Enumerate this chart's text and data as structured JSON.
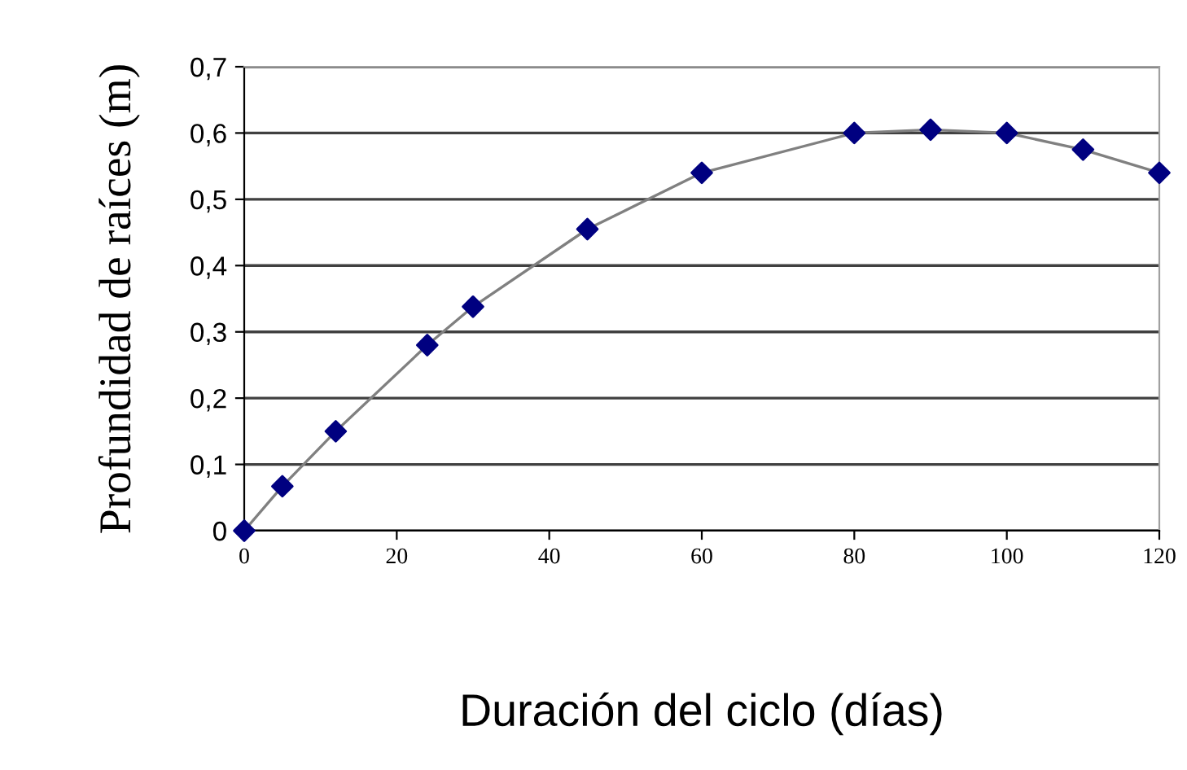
{
  "chart_data": {
    "type": "scatter",
    "xlabel": "Duración del ciclo (días)",
    "ylabel": "Profundidad de raíces (m)",
    "xlim": [
      0,
      120
    ],
    "xticks": [
      0,
      20,
      40,
      60,
      80,
      100,
      120
    ],
    "ylim": [
      0,
      0.7
    ],
    "yticks": [
      0,
      {
        "value": 0.1,
        "label": "0,1"
      },
      {
        "value": 0.2,
        "label": "0,2"
      },
      {
        "value": 0.3,
        "label": "0,3"
      },
      {
        "value": 0.4,
        "label": "0,4"
      },
      {
        "value": 0.5,
        "label": "0,5"
      },
      {
        "value": 0.6,
        "label": "0,6"
      },
      {
        "value": 0.7,
        "label": "0,7"
      }
    ],
    "grid": "y",
    "legend": false,
    "marker": "diamond",
    "series": [
      {
        "type": "line",
        "color": "#808080",
        "marker": "none",
        "x": [
          0,
          5,
          12,
          24,
          30,
          45,
          60,
          80,
          90,
          100,
          110,
          120
        ],
        "values": [
          0,
          0.067,
          0.15,
          0.28,
          0.338,
          0.455,
          0.54,
          0.6,
          0.605,
          0.6,
          0.575,
          0.54
        ]
      },
      {
        "color": "#000080",
        "x": [
          0,
          5,
          12,
          24,
          30,
          45,
          60,
          80,
          90,
          100,
          110,
          120
        ],
        "values": [
          0,
          0.067,
          0.15,
          0.28,
          0.338,
          0.455,
          0.54,
          0.6,
          0.605,
          0.6,
          0.575,
          0.54
        ]
      }
    ]
  }
}
